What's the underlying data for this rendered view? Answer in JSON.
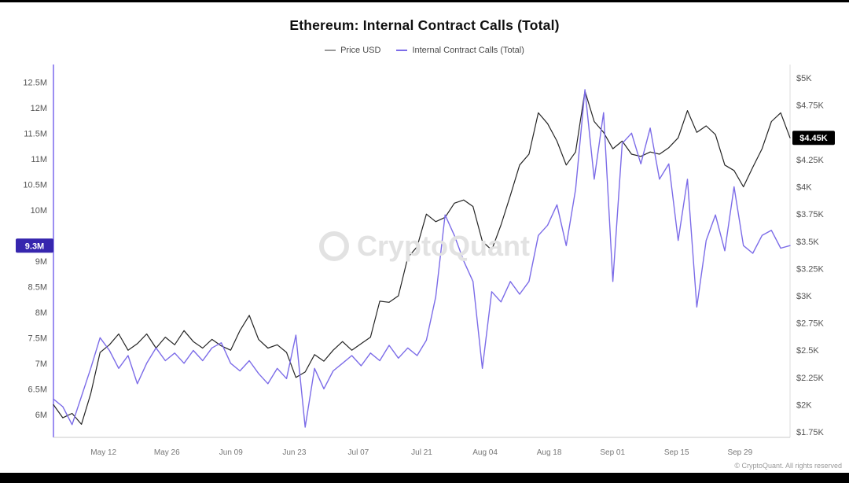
{
  "title": "Ethereum: Internal Contract Calls (Total)",
  "legend": {
    "items": [
      {
        "label": "Price USD",
        "color": "#9a9a9a"
      },
      {
        "label": "Internal Contract Calls (Total)",
        "color": "#7c6ce8"
      }
    ]
  },
  "watermark": {
    "text": "CryptoQuant"
  },
  "copyright": "© CryptoQuant. All rights reserved",
  "chart_data": {
    "type": "line",
    "title": "Ethereum: Internal Contract Calls (Total)",
    "grid": false,
    "legend_position": "top",
    "left_axis": {
      "label": "Internal Contract Calls (Total)",
      "range": [
        5.55,
        12.75
      ],
      "unit": "M",
      "line_color": "#7b68ee",
      "ticks": [
        12.5,
        12,
        11.5,
        11,
        10.5,
        10,
        9,
        8.5,
        8,
        7.5,
        7,
        6.5,
        6
      ],
      "labels": [
        "12.5M",
        "12M",
        "11.5M",
        "11M",
        "10.5M",
        "10M",
        "9M",
        "8.5M",
        "8M",
        "7.5M",
        "7M",
        "6.5M",
        "6M"
      ]
    },
    "right_axis": {
      "label": "Price USD",
      "range": [
        1.7,
        5.08
      ],
      "unit": "$K",
      "ticks": [
        5,
        4.75,
        4.25,
        4,
        3.75,
        3.5,
        3.25,
        3,
        2.75,
        2.5,
        2.25,
        2,
        1.75
      ],
      "labels": [
        "$5K",
        "$4.75K",
        "$4.25K",
        "$4K",
        "$3.75K",
        "$3.5K",
        "$3.25K",
        "$3K",
        "$2.75K",
        "$2.5K",
        "$2.25K",
        "$2K",
        "$1.75K"
      ]
    },
    "x_ticks": [
      {
        "label": "May 12",
        "pos": 0.068
      },
      {
        "label": "May 26",
        "pos": 0.154
      },
      {
        "label": "Jun 09",
        "pos": 0.241
      },
      {
        "label": "Jun 23",
        "pos": 0.327
      },
      {
        "label": "Jul 07",
        "pos": 0.414
      },
      {
        "label": "Jul 21",
        "pos": 0.5
      },
      {
        "label": "Aug 04",
        "pos": 0.586
      },
      {
        "label": "Aug 18",
        "pos": 0.673
      },
      {
        "label": "Sep 01",
        "pos": 0.759
      },
      {
        "label": "Sep 15",
        "pos": 0.846
      },
      {
        "label": "Sep 29",
        "pos": 0.932
      }
    ],
    "badges": {
      "left": {
        "label": "9.3M",
        "value": 9.3,
        "bg": "#3626ae"
      },
      "right": {
        "label": "$4.45K",
        "value": 4.45,
        "bg": "#000000"
      }
    },
    "series": [
      {
        "id": "price-usd",
        "name": "Price USD",
        "axis": "right",
        "color": "#242424",
        "width": 1.2,
        "values": [
          2.0,
          1.88,
          1.92,
          1.82,
          2.1,
          2.48,
          2.55,
          2.65,
          2.5,
          2.56,
          2.65,
          2.52,
          2.62,
          2.55,
          2.68,
          2.58,
          2.52,
          2.6,
          2.54,
          2.5,
          2.68,
          2.82,
          2.6,
          2.52,
          2.55,
          2.48,
          2.25,
          2.3,
          2.46,
          2.4,
          2.5,
          2.58,
          2.5,
          2.56,
          2.62,
          2.95,
          2.94,
          3.0,
          3.35,
          3.45,
          3.75,
          3.68,
          3.72,
          3.85,
          3.88,
          3.82,
          3.5,
          3.42,
          3.65,
          3.92,
          4.2,
          4.3,
          4.68,
          4.58,
          4.42,
          4.2,
          4.32,
          4.88,
          4.6,
          4.5,
          4.35,
          4.42,
          4.3,
          4.28,
          4.32,
          4.3,
          4.36,
          4.45,
          4.7,
          4.5,
          4.56,
          4.48,
          4.2,
          4.15,
          4.0,
          4.18,
          4.35,
          4.6,
          4.68,
          4.45
        ]
      },
      {
        "id": "internal-contract-calls",
        "name": "Internal Contract Calls (Total)",
        "axis": "left",
        "color": "#7c6ce8",
        "width": 1.4,
        "values": [
          6.3,
          6.15,
          5.8,
          6.35,
          6.9,
          7.5,
          7.25,
          6.9,
          7.15,
          6.6,
          7.0,
          7.3,
          7.05,
          7.2,
          7.0,
          7.25,
          7.05,
          7.3,
          7.4,
          7.0,
          6.85,
          7.05,
          6.8,
          6.6,
          6.9,
          6.7,
          7.55,
          5.75,
          6.9,
          6.5,
          6.85,
          7.0,
          7.15,
          6.95,
          7.2,
          7.05,
          7.35,
          7.1,
          7.3,
          7.15,
          7.45,
          8.3,
          9.9,
          9.5,
          9.0,
          8.6,
          6.9,
          8.4,
          8.2,
          8.6,
          8.35,
          8.6,
          9.5,
          9.7,
          10.1,
          9.3,
          10.4,
          12.35,
          10.6,
          11.9,
          8.6,
          11.3,
          11.5,
          10.9,
          11.6,
          10.6,
          10.9,
          9.4,
          10.6,
          8.1,
          9.4,
          9.9,
          9.2,
          10.45,
          9.3,
          9.15,
          9.5,
          9.6,
          9.25,
          9.3
        ]
      }
    ]
  }
}
